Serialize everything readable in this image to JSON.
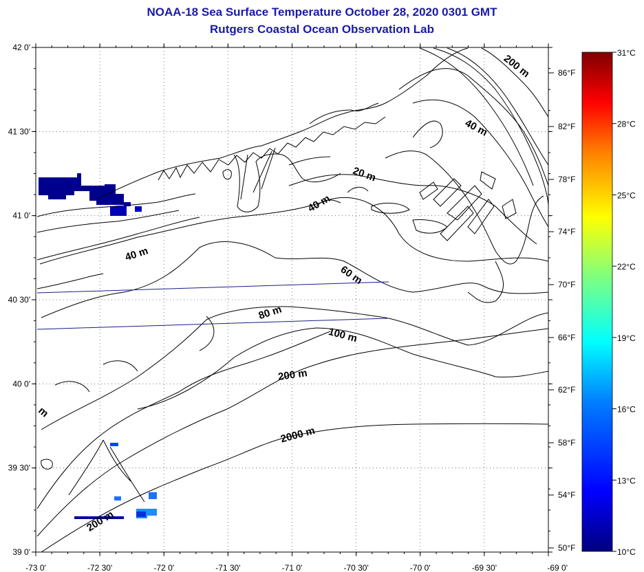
{
  "title": {
    "line1": "NOAA-18 Sea Surface Temperature October 28, 2020 0301 GMT",
    "line2": "Rutgers Coastal Ocean Observation Lab"
  },
  "map": {
    "lon_range": [
      -73,
      -69
    ],
    "lat_range": [
      39,
      42
    ],
    "lon_ticks": [
      -73,
      -72.5,
      -72,
      -71.5,
      -71,
      -70.5,
      -70,
      -69.5,
      -69
    ],
    "lon_labels": [
      "-73 0'",
      "-72 30'",
      "-72 0'",
      "-71 30'",
      "-71 0'",
      "-70 30'",
      "-70 0'",
      "-69 30'",
      "-69 0'"
    ],
    "lat_ticks": [
      42,
      41.5,
      41,
      40.5,
      40,
      39.5,
      39
    ],
    "lat_labels": [
      "42 0'",
      "41 30'",
      "41 0'",
      "40 30'",
      "40 0'",
      "39 30'",
      "39 0'"
    ],
    "right_axis_labels": [
      "86°F",
      "82°F",
      "78°F",
      "74°F",
      "70°F",
      "66°F",
      "62°F",
      "58°F",
      "54°F",
      "50°F"
    ],
    "contour_labels": [
      {
        "id": "200-ne",
        "text": "200 m"
      },
      {
        "id": "40-ne",
        "text": "40 m"
      },
      {
        "id": "20",
        "text": "20 m"
      },
      {
        "id": "40-mid",
        "text": "40 m"
      },
      {
        "id": "40-w",
        "text": "40 m"
      },
      {
        "id": "60",
        "text": "60 m"
      },
      {
        "id": "80",
        "text": "80 m"
      },
      {
        "id": "100",
        "text": "100 m"
      },
      {
        "id": "200",
        "text": "200 m"
      },
      {
        "id": "2000",
        "text": "2000 m"
      },
      {
        "id": "200-sw",
        "text": "200 m"
      },
      {
        "id": "m-edge",
        "text": "m"
      }
    ]
  },
  "colorbar": {
    "celsius_labels": [
      "31°C",
      "28°C",
      "25°C",
      "22°C",
      "19°C",
      "16°C",
      "13°C",
      "10°C"
    ],
    "fahrenheit_labels": [
      "86°F",
      "82°F",
      "78°F",
      "74°F",
      "70°F",
      "66°F",
      "62°F",
      "58°F",
      "54°F",
      "50°F"
    ],
    "range_c": [
      10,
      31
    ],
    "colors": [
      "#00007f",
      "#0000ff",
      "#007fff",
      "#00ffff",
      "#7fff7f",
      "#ffff00",
      "#ff7f00",
      "#ff0000",
      "#7f0000"
    ]
  }
}
